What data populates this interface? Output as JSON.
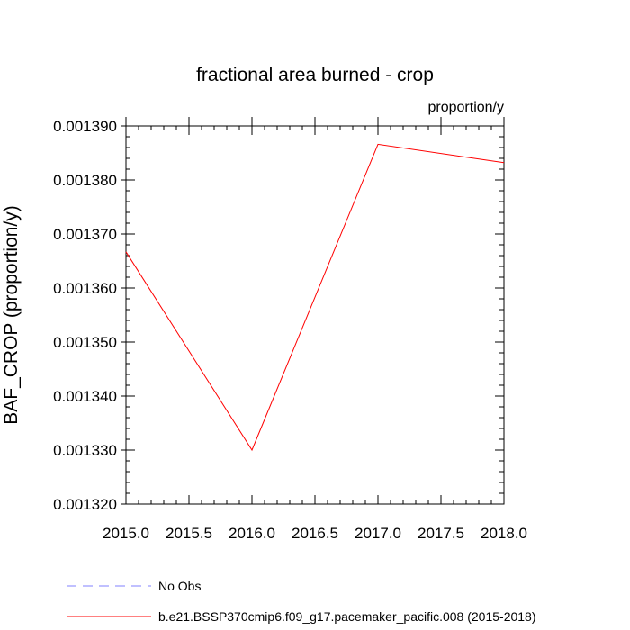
{
  "chart_data": {
    "type": "line",
    "title": "fractional area burned - crop",
    "units_label": "proportion/y",
    "ylabel": "BAF_CROP  (proportion/y)",
    "xlabel": "",
    "xlim": [
      2015.0,
      2018.0
    ],
    "ylim": [
      0.00132,
      0.00139
    ],
    "x_ticks": [
      2015.0,
      2015.5,
      2016.0,
      2016.5,
      2017.0,
      2017.5,
      2018.0
    ],
    "x_tick_labels": [
      "2015.0",
      "2015.5",
      "2016.0",
      "2016.5",
      "2017.0",
      "2017.5",
      "2018.0"
    ],
    "y_ticks": [
      0.00132,
      0.00133,
      0.00134,
      0.00135,
      0.00136,
      0.00137,
      0.00138,
      0.00139
    ],
    "y_tick_labels": [
      "0.001320",
      "0.001330",
      "0.001340",
      "0.001350",
      "0.001360",
      "0.001370",
      "0.001380",
      "0.001390"
    ],
    "grid": false,
    "legend_position": "bottom",
    "series": [
      {
        "name": "b.e21.BSSP370cmip6.f09_g17.pacemaker_pacific.008 (2015-2018)",
        "color": "#ff0000",
        "dash": "solid",
        "x": [
          2015.0,
          2016.0,
          2017.0,
          2018.0
        ],
        "y": [
          0.0013667,
          0.00133,
          0.0013866,
          0.0013832
        ]
      }
    ],
    "legend": [
      {
        "label": "No Obs",
        "color": "#8080ff",
        "dash": "dashed"
      },
      {
        "label": "b.e21.BSSP370cmip6.f09_g17.pacemaker_pacific.008 (2015-2018)",
        "color": "#ff0000",
        "dash": "solid"
      }
    ]
  }
}
